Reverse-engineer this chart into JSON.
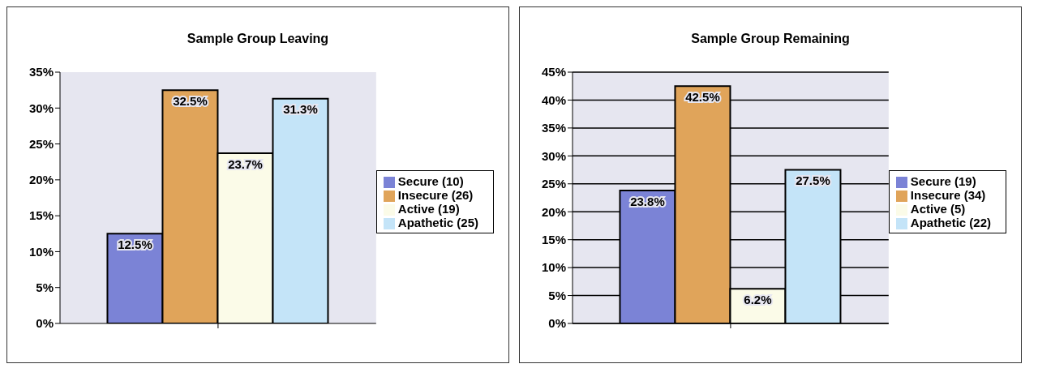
{
  "chart_data": [
    {
      "type": "bar",
      "title": "Sample Group Leaving",
      "categories": [
        null
      ],
      "series": [
        {
          "name": "Secure (10)",
          "color": "#7b83d6",
          "values": [
            12.5
          ],
          "value_labels": [
            "12.5%"
          ]
        },
        {
          "name": "Insecure (26)",
          "color": "#e0a45a",
          "values": [
            32.5
          ],
          "value_labels": [
            "32.5%"
          ]
        },
        {
          "name": "Active (19)",
          "color": "#fbfbe8",
          "values": [
            23.7
          ],
          "value_labels": [
            "23.7%"
          ]
        },
        {
          "name": "Apathetic (25)",
          "color": "#c4e4f8",
          "values": [
            31.3
          ],
          "value_labels": [
            "31.3%"
          ]
        }
      ],
      "ylim": [
        0,
        35
      ],
      "yticks": [
        {
          "value": 0,
          "label": "0%"
        },
        {
          "value": 5,
          "label": "5%"
        },
        {
          "value": 10,
          "label": "10%"
        },
        {
          "value": 15,
          "label": "15%"
        },
        {
          "value": 20,
          "label": "20%"
        },
        {
          "value": 25,
          "label": "25%"
        },
        {
          "value": 30,
          "label": "30%"
        },
        {
          "value": 35,
          "label": "35%"
        }
      ],
      "grid": false,
      "legend": "right"
    },
    {
      "type": "bar",
      "title": "Sample Group Remaining",
      "categories": [
        null
      ],
      "series": [
        {
          "name": "Secure (19)",
          "color": "#7b83d6",
          "values": [
            23.8
          ],
          "value_labels": [
            "23.8%"
          ]
        },
        {
          "name": "Insecure (34)",
          "color": "#e0a45a",
          "values": [
            42.5
          ],
          "value_labels": [
            "42.5%"
          ]
        },
        {
          "name": "Active (5)",
          "color": "#fbfbe8",
          "values": [
            6.2
          ],
          "value_labels": [
            "6.2%"
          ]
        },
        {
          "name": "Apathetic (22)",
          "color": "#c4e4f8",
          "values": [
            27.5
          ],
          "value_labels": [
            "27.5%"
          ]
        }
      ],
      "ylim": [
        0,
        45
      ],
      "yticks": [
        {
          "value": 0,
          "label": "0%"
        },
        {
          "value": 5,
          "label": "5%"
        },
        {
          "value": 10,
          "label": "10%"
        },
        {
          "value": 15,
          "label": "15%"
        },
        {
          "value": 20,
          "label": "20%"
        },
        {
          "value": 25,
          "label": "25%"
        },
        {
          "value": 30,
          "label": "30%"
        },
        {
          "value": 35,
          "label": "35%"
        },
        {
          "value": 40,
          "label": "40%"
        },
        {
          "value": 45,
          "label": "45%"
        }
      ],
      "grid": "y",
      "legend": "right"
    }
  ]
}
